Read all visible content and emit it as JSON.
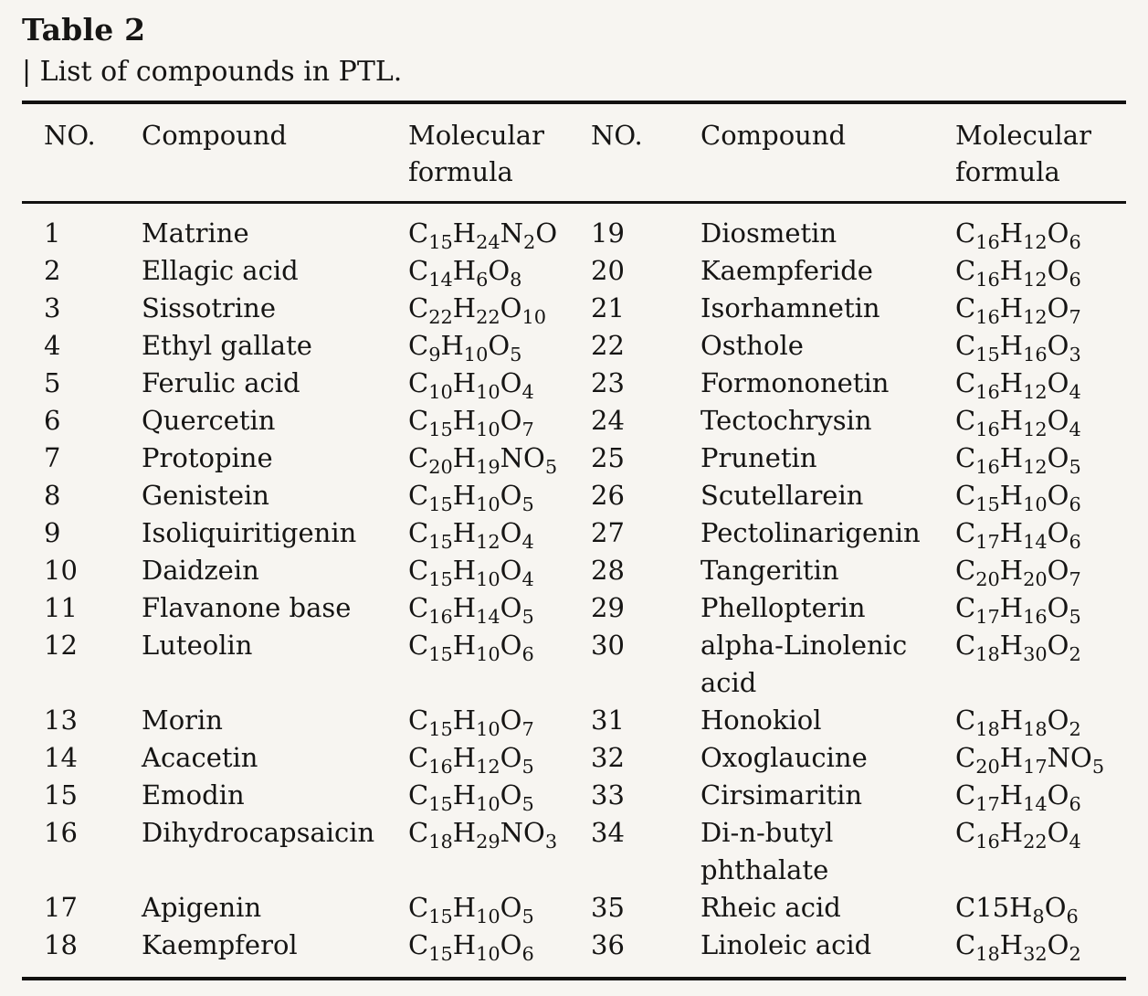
{
  "colors": {
    "background": "#f7f5f1",
    "text": "#161514",
    "rule": "#121110"
  },
  "table": {
    "title": "Table 2",
    "subtitle": "| List of compounds in PTL.",
    "columns": {
      "no": "NO.",
      "compound": "Compound",
      "formula": "Molecular formula"
    },
    "rows_left": [
      {
        "no": "1",
        "compound": "Matrine",
        "formula": "C_{15}H_{24}N_{2}O"
      },
      {
        "no": "2",
        "compound": "Ellagic acid",
        "formula": "C_{14}H_{6}O_{8}"
      },
      {
        "no": "3",
        "compound": "Sissotrine",
        "formula": "C_{22}H_{22}O_{10}"
      },
      {
        "no": "4",
        "compound": "Ethyl gallate",
        "formula": "C_{9}H_{10}O_{5}"
      },
      {
        "no": "5",
        "compound": "Ferulic acid",
        "formula": "C_{10}H_{10}O_{4}"
      },
      {
        "no": "6",
        "compound": "Quercetin",
        "formula": "C_{15}H_{10}O_{7}"
      },
      {
        "no": "7",
        "compound": "Protopine",
        "formula": "C_{20}H_{19}NO_{5}"
      },
      {
        "no": "8",
        "compound": "Genistein",
        "formula": "C_{15}H_{10}O_{5}"
      },
      {
        "no": "9",
        "compound": "Isoliquiritigenin",
        "formula": "C_{15}H_{12}O_{4}"
      },
      {
        "no": "10",
        "compound": "Daidzein",
        "formula": "C_{15}H_{10}O_{4}"
      },
      {
        "no": "11",
        "compound": "Flavanone base",
        "formula": "C_{16}H_{14}O_{5}"
      },
      {
        "no": "12",
        "compound": "Luteolin",
        "formula": "C_{15}H_{10}O_{6}"
      },
      {
        "no": "13",
        "compound": "Morin",
        "formula": "C_{15}H_{10}O_{7}"
      },
      {
        "no": "14",
        "compound": "Acacetin",
        "formula": "C_{16}H_{12}O_{5}"
      },
      {
        "no": "15",
        "compound": "Emodin",
        "formula": "C_{15}H_{10}O_{5}"
      },
      {
        "no": "16",
        "compound": "Dihydrocapsaicin",
        "formula": "C_{18}H_{29}NO_{3}"
      },
      {
        "no": "17",
        "compound": "Apigenin",
        "formula": "C_{15}H_{10}O_{5}"
      },
      {
        "no": "18",
        "compound": "Kaempferol",
        "formula": "C_{15}H_{10}O_{6}"
      }
    ],
    "rows_right": [
      {
        "no": "19",
        "compound": "Diosmetin",
        "formula": "C_{16}H_{12}O_{6}"
      },
      {
        "no": "20",
        "compound": "Kaempferide",
        "formula": "C_{16}H_{12}O_{6}"
      },
      {
        "no": "21",
        "compound": "Isorhamnetin",
        "formula": "C_{16}H_{12}O_{7}"
      },
      {
        "no": "22",
        "compound": "Osthole",
        "formula": "C_{15}H_{16}O_{3}"
      },
      {
        "no": "23",
        "compound": "Formononetin",
        "formula": "C_{16}H_{12}O_{4}"
      },
      {
        "no": "24",
        "compound": "Tectochrysin",
        "formula": "C_{16}H_{12}O_{4}"
      },
      {
        "no": "25",
        "compound": "Prunetin",
        "formula": "C_{16}H_{12}O_{5}"
      },
      {
        "no": "26",
        "compound": "Scutellarein",
        "formula": "C_{15}H_{10}O_{6}"
      },
      {
        "no": "27",
        "compound": "Pectolinarigenin",
        "formula": "C_{17}H_{14}O_{6}"
      },
      {
        "no": "28",
        "compound": "Tangeritin",
        "formula": "C_{20}H_{20}O_{7}"
      },
      {
        "no": "29",
        "compound": "Phellopterin",
        "formula": "C_{17}H_{16}O_{5}"
      },
      {
        "no": "30",
        "compound": "alpha-Linolenic\nacid",
        "formula": "C_{18}H_{30}O_{2}"
      },
      {
        "no": "31",
        "compound": "Honokiol",
        "formula": "C_{18}H_{18}O_{2}"
      },
      {
        "no": "32",
        "compound": "Oxoglaucine",
        "formula": "C_{20}H_{17}NO_{5}"
      },
      {
        "no": "33",
        "compound": "Cirsimaritin",
        "formula": "C_{17}H_{14}O_{6}"
      },
      {
        "no": "34",
        "compound": "Di-n-butyl\nphthalate",
        "formula": "C_{16}H_{22}O_{4}"
      },
      {
        "no": "35",
        "compound": "Rheic acid",
        "formula": "C15H_{8}O_{6}"
      },
      {
        "no": "36",
        "compound": "Linoleic acid",
        "formula": "C_{18}H_{32}O_{2}"
      }
    ]
  }
}
